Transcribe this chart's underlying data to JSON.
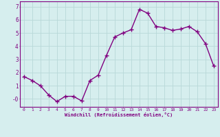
{
  "x": [
    0,
    1,
    2,
    3,
    4,
    5,
    6,
    7,
    8,
    9,
    10,
    11,
    12,
    13,
    14,
    15,
    16,
    17,
    18,
    19,
    20,
    21,
    22,
    23
  ],
  "y": [
    1.7,
    1.4,
    1.0,
    0.3,
    -0.2,
    0.2,
    0.2,
    -0.15,
    1.4,
    1.8,
    3.3,
    4.7,
    5.0,
    5.25,
    6.8,
    6.5,
    5.5,
    5.4,
    5.2,
    5.3,
    5.5,
    5.1,
    4.2,
    2.5
  ],
  "line_color": "#800080",
  "marker": "+",
  "markersize": 4,
  "linewidth": 1.0,
  "xlabel": "Windchill (Refroidissement éolien,°C)",
  "xlim": [
    -0.5,
    23.5
  ],
  "ylim": [
    -0.6,
    7.4
  ],
  "yticks": [
    0,
    1,
    2,
    3,
    4,
    5,
    6,
    7
  ],
  "ytick_labels": [
    "-0",
    "1",
    "2",
    "3",
    "4",
    "5",
    "6",
    "7"
  ],
  "xticks": [
    0,
    1,
    2,
    3,
    4,
    5,
    6,
    7,
    8,
    9,
    10,
    11,
    12,
    13,
    14,
    15,
    16,
    17,
    18,
    19,
    20,
    21,
    22,
    23
  ],
  "bg_color": "#d6eeee",
  "grid_color": "#b8d8d8",
  "tick_color": "#800080",
  "label_color": "#800080",
  "spine_color": "#800080"
}
